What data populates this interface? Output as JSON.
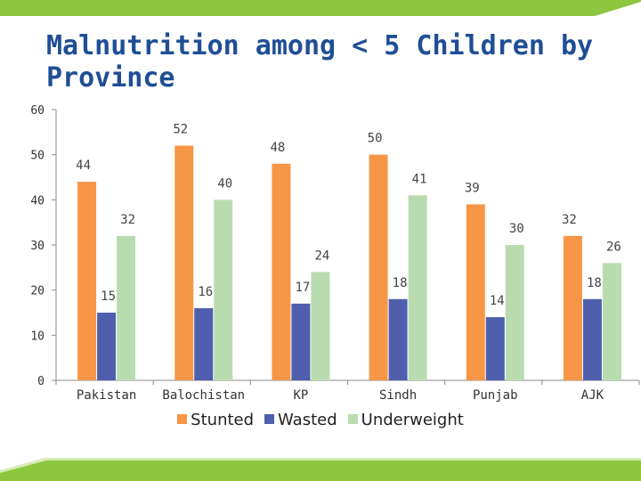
{
  "slide": {
    "title": "Malnutrition among < 5 Children by Province",
    "colors": {
      "top_bar": "#8dc63f",
      "bottom_bar": "#8dc63f",
      "title": "#1f4e96"
    }
  },
  "chart_data": {
    "type": "bar",
    "title": "",
    "xlabel": "",
    "ylabel": "",
    "categories": [
      "Pakistan",
      "Balochistan",
      "KP",
      "Sindh",
      "Punjab",
      "AJK"
    ],
    "series": [
      {
        "name": "Stunted",
        "color": "#f79646",
        "values": [
          44,
          52,
          48,
          50,
          39,
          32
        ]
      },
      {
        "name": "Wasted",
        "color": "#4f5fae",
        "values": [
          15,
          16,
          17,
          18,
          14,
          18
        ]
      },
      {
        "name": "Underweight",
        "color": "#b8dcb0",
        "values": [
          32,
          40,
          24,
          41,
          30,
          26
        ]
      }
    ],
    "ylim": [
      0,
      60
    ],
    "yticks": [
      0,
      10,
      20,
      30,
      40,
      50,
      60
    ],
    "grid": false,
    "legend": "bottom",
    "data_labels": true
  }
}
